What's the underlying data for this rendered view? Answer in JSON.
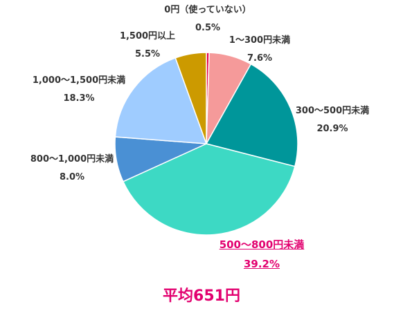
{
  "chart_data": {
    "type": "pie",
    "slices": [
      {
        "label": "0円（使っていない）",
        "value": 0.5,
        "value_text": "0.5%",
        "color": "#e6004c"
      },
      {
        "label": "1～300円未満",
        "value": 7.6,
        "value_text": "7.6%",
        "color": "#f59a9a"
      },
      {
        "label": "300～500円未満",
        "value": 20.9,
        "value_text": "20.9%",
        "color": "#00969a"
      },
      {
        "label": "500～800円未満",
        "value": 39.2,
        "value_text": "39.2%",
        "color": "#3dd9c4",
        "highlight": true
      },
      {
        "label": "800～1,000円未満",
        "value": 8.0,
        "value_text": "8.0%",
        "color": "#4a90d4"
      },
      {
        "label": "1,000～1,500円未満",
        "value": 18.3,
        "value_text": "18.3%",
        "color": "#9fccff"
      },
      {
        "label": "1,500円以上",
        "value": 5.5,
        "value_text": "5.5%",
        "color": "#cc9a00"
      }
    ],
    "start": "top",
    "direction": "clockwise",
    "legend": "none"
  },
  "caption": "平均651円"
}
